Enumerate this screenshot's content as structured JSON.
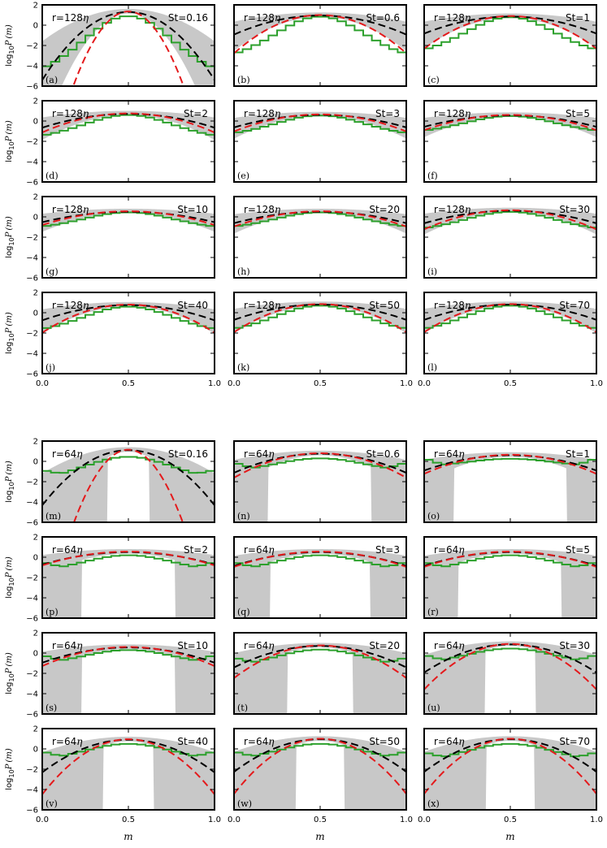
{
  "chart_data": {
    "type": "line",
    "title": "",
    "xlabel": "m",
    "ylabel": "log10 P(m)",
    "ylabel_parts": {
      "log": "log",
      "sub": "10",
      "P": "P",
      "arg": "(m)"
    },
    "xlim": [
      0,
      1
    ],
    "ylim": [
      -6,
      2
    ],
    "xticks": [
      0.0,
      0.5,
      1.0
    ],
    "xtick_labels": [
      "0.0",
      "0.5",
      "1.0"
    ],
    "yticks": [
      -6,
      -4,
      -2,
      0,
      2
    ],
    "ytick_labels": [
      "−6",
      "−4",
      "−2",
      "0",
      "2"
    ],
    "series_styles": {
      "histogram": {
        "name": "simulation histogram",
        "color": "#2ca02c"
      },
      "black_dashed": {
        "name": "model (black dashed)",
        "color": "#000000"
      },
      "red_dashed": {
        "name": "model (red dashed)",
        "color": "#e41a1c"
      },
      "grey_band": {
        "name": "range (grey shaded)",
        "color": "#c8c8c8"
      }
    },
    "groups": [
      {
        "r_label": "r=128",
        "r_symbol": "η",
        "panels": [
          {
            "id": "(a)",
            "st_label": "St=0.16",
            "peak": 1.3,
            "red_width": 0.055,
            "black_width": 0.09,
            "hist_center": 0.9,
            "hist_floor": -5.2,
            "band_inner": 0.0
          },
          {
            "id": "(b)",
            "st_label": "St=0.6",
            "peak": 0.95,
            "red_width": 0.12,
            "black_width": 0.17,
            "hist_center": 0.85,
            "hist_floor": -3.5,
            "band_inner": 0.0
          },
          {
            "id": "(c)",
            "st_label": "St=1",
            "peak": 0.85,
            "red_width": 0.13,
            "black_width": 0.18,
            "hist_center": 0.8,
            "hist_floor": -3.0,
            "band_inner": 0.0
          },
          {
            "id": "(d)",
            "st_label": "St=2",
            "peak": 0.7,
            "red_width": 0.17,
            "black_width": 0.2,
            "hist_center": 0.6,
            "hist_floor": -1.8,
            "band_inner": 0.0
          },
          {
            "id": "(e)",
            "st_label": "St=3",
            "peak": 0.6,
            "red_width": 0.18,
            "black_width": 0.21,
            "hist_center": 0.55,
            "hist_floor": -1.5,
            "band_inner": 0.0
          },
          {
            "id": "(f)",
            "st_label": "St=5",
            "peak": 0.55,
            "red_width": 0.19,
            "black_width": 0.22,
            "hist_center": 0.5,
            "hist_floor": -1.2,
            "band_inner": 0.0
          },
          {
            "id": "(g)",
            "st_label": "St=10",
            "peak": 0.5,
            "red_width": 0.2,
            "black_width": 0.23,
            "hist_center": 0.45,
            "hist_floor": -1.2,
            "band_inner": 0.0
          },
          {
            "id": "(h)",
            "st_label": "St=20",
            "peak": 0.5,
            "red_width": 0.19,
            "black_width": 0.22,
            "hist_center": 0.45,
            "hist_floor": -1.2,
            "band_inner": 0.0
          },
          {
            "id": "(i)",
            "st_label": "St=30",
            "peak": 0.6,
            "red_width": 0.17,
            "black_width": 0.21,
            "hist_center": 0.5,
            "hist_floor": -1.4,
            "band_inner": 0.0
          },
          {
            "id": "(j)",
            "st_label": "St=40",
            "peak": 0.75,
            "red_width": 0.14,
            "black_width": 0.19,
            "hist_center": 0.6,
            "hist_floor": -2.0,
            "band_inner": 0.0
          },
          {
            "id": "(k)",
            "st_label": "St=50",
            "peak": 0.8,
            "red_width": 0.14,
            "black_width": 0.19,
            "hist_center": 0.7,
            "hist_floor": -2.0,
            "band_inner": 0.0
          },
          {
            "id": "(l)",
            "st_label": "St=70",
            "peak": 0.8,
            "red_width": 0.14,
            "black_width": 0.19,
            "hist_center": 0.7,
            "hist_floor": -2.0,
            "band_inner": 0.0
          }
        ]
      },
      {
        "r_label": "r=64",
        "r_symbol": "η",
        "panels": [
          {
            "id": "(m)",
            "st_label": "St=0.16",
            "peak": 1.1,
            "red_width": 0.055,
            "black_width": 0.1,
            "hist_center": 0.45,
            "hist_floor": -2.0,
            "band_inner": 0.12
          },
          {
            "id": "(n)",
            "st_label": "St=0.6",
            "peak": 0.75,
            "red_width": 0.15,
            "black_width": 0.17,
            "hist_center": 0.3,
            "hist_floor": -1.1,
            "band_inner": 0.3
          },
          {
            "id": "(o)",
            "st_label": "St=1",
            "peak": 0.6,
            "red_width": 0.17,
            "black_width": 0.19,
            "hist_center": 0.25,
            "hist_floor": -0.6,
            "band_inner": 0.33
          },
          {
            "id": "(p)",
            "st_label": "St=2",
            "peak": 0.5,
            "red_width": 0.2,
            "black_width": 0.21,
            "hist_center": 0.2,
            "hist_floor": -1.5,
            "band_inner": 0.27
          },
          {
            "id": "(q)",
            "st_label": "St=3",
            "peak": 0.5,
            "red_width": 0.19,
            "black_width": 0.2,
            "hist_center": 0.2,
            "hist_floor": -1.5,
            "band_inner": 0.29
          },
          {
            "id": "(r)",
            "st_label": "St=5",
            "peak": 0.5,
            "red_width": 0.19,
            "black_width": 0.2,
            "hist_center": 0.2,
            "hist_floor": -1.5,
            "band_inner": 0.3
          },
          {
            "id": "(s)",
            "st_label": "St=10",
            "peak": 0.55,
            "red_width": 0.17,
            "black_width": 0.19,
            "hist_center": 0.3,
            "hist_floor": -1.2,
            "band_inner": 0.27
          },
          {
            "id": "(t)",
            "st_label": "St=20",
            "peak": 0.7,
            "red_width": 0.13,
            "black_width": 0.16,
            "hist_center": 0.35,
            "hist_floor": -1.5,
            "band_inner": 0.19
          },
          {
            "id": "(u)",
            "st_label": "St=30",
            "peak": 0.85,
            "red_width": 0.11,
            "black_width": 0.14,
            "hist_center": 0.45,
            "hist_floor": -1.2,
            "band_inner": 0.15
          },
          {
            "id": "(v)",
            "st_label": "St=40",
            "peak": 0.9,
            "red_width": 0.1,
            "black_width": 0.13,
            "hist_center": 0.5,
            "hist_floor": -1.3,
            "band_inner": 0.15
          },
          {
            "id": "(w)",
            "st_label": "St=50",
            "peak": 0.95,
            "red_width": 0.1,
            "black_width": 0.13,
            "hist_center": 0.5,
            "hist_floor": -1.3,
            "band_inner": 0.14
          },
          {
            "id": "(x)",
            "st_label": "St=70",
            "peak": 0.95,
            "red_width": 0.1,
            "black_width": 0.13,
            "hist_center": 0.5,
            "hist_floor": -1.4,
            "band_inner": 0.14
          }
        ]
      }
    ]
  }
}
